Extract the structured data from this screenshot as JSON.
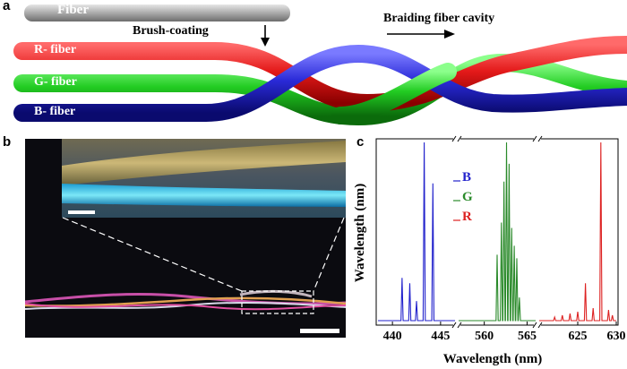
{
  "panel_a": {
    "letter": "a",
    "fiber_label": "Fiber",
    "process_label": "Brush-coating",
    "braid_label": "Braiding fiber cavity",
    "r_fiber_label": "R- fiber",
    "g_fiber_label": "G- fiber",
    "b_fiber_label": "B- fiber",
    "colors": {
      "red": "#e41a1a",
      "green": "#22cc22",
      "blue": "#2a2ad8",
      "gray": "#9a9a9a"
    }
  },
  "panel_b": {
    "letter": "b",
    "description_colors": {
      "background": "#0b0b10",
      "inset_top": "#b9a36a",
      "inset_bottom": "#1ec8f5"
    }
  },
  "panel_c": {
    "letter": "c"
  },
  "chart_data": {
    "type": "line",
    "title": "",
    "xlabel": "Wavelength (nm)",
    "ylabel": "Wavelength (nm)",
    "x_segments": [
      {
        "range": [
          438.5,
          446.5
        ],
        "ticks": [
          440,
          445
        ],
        "color": "#2222cc"
      },
      {
        "range": [
          557,
          566
        ],
        "ticks": [
          560,
          565
        ],
        "color": "#2a8a2a"
      },
      {
        "range": [
          620,
          630
        ],
        "ticks": [
          625,
          630
        ],
        "color": "#dd2222"
      }
    ],
    "ylim": [
      0,
      1.0
    ],
    "legend": [
      {
        "name": "B",
        "color": "#2222cc"
      },
      {
        "name": "G",
        "color": "#2a8a2a"
      },
      {
        "name": "R",
        "color": "#dd2222"
      }
    ],
    "legend_position": "top-left",
    "series": [
      {
        "name": "B",
        "color": "#2222cc",
        "peaks": [
          {
            "x": 441.0,
            "y": 0.24
          },
          {
            "x": 441.8,
            "y": 0.21
          },
          {
            "x": 442.5,
            "y": 0.11
          },
          {
            "x": 443.3,
            "y": 1.0
          },
          {
            "x": 444.2,
            "y": 0.77
          }
        ]
      },
      {
        "name": "G",
        "color": "#2a8a2a",
        "peaks": [
          {
            "x": 561.5,
            "y": 0.37
          },
          {
            "x": 562.0,
            "y": 0.55
          },
          {
            "x": 562.3,
            "y": 0.78
          },
          {
            "x": 562.6,
            "y": 1.0
          },
          {
            "x": 562.9,
            "y": 0.88
          },
          {
            "x": 563.2,
            "y": 0.52
          },
          {
            "x": 563.5,
            "y": 0.42
          },
          {
            "x": 563.8,
            "y": 0.35
          },
          {
            "x": 564.1,
            "y": 0.13
          }
        ]
      },
      {
        "name": "R",
        "color": "#dd2222",
        "peaks": [
          {
            "x": 622.0,
            "y": 0.02
          },
          {
            "x": 623.0,
            "y": 0.03
          },
          {
            "x": 624.0,
            "y": 0.04
          },
          {
            "x": 625.0,
            "y": 0.05
          },
          {
            "x": 626.0,
            "y": 0.21
          },
          {
            "x": 627.0,
            "y": 0.07
          },
          {
            "x": 628.0,
            "y": 1.0
          },
          {
            "x": 629.0,
            "y": 0.06
          },
          {
            "x": 629.5,
            "y": 0.03
          }
        ]
      }
    ]
  }
}
